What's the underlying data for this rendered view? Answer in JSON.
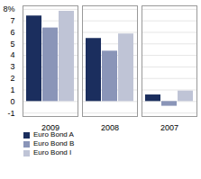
{
  "chart_data": {
    "type": "bar",
    "categories": [
      "2009",
      "2008",
      "2007"
    ],
    "series": [
      {
        "name": "Euro Bond A",
        "color": "#1b2e5e",
        "values": [
          7.42,
          5.47,
          0.57
        ]
      },
      {
        "name": "Euro Bond B",
        "color": "#8a95b8",
        "values": [
          6.38,
          4.37,
          -0.41
        ]
      },
      {
        "name": "Euro Bond I",
        "color": "#bfc4d6",
        "values": [
          7.83,
          5.86,
          0.91
        ]
      }
    ],
    "ylim": [
      -1.3,
      8.3
    ],
    "yticks": [
      -1,
      0,
      1,
      2,
      3,
      4,
      5,
      6,
      7,
      {
        "value": 8,
        "label": "8%"
      }
    ],
    "grid": true,
    "legend": "bottom"
  }
}
